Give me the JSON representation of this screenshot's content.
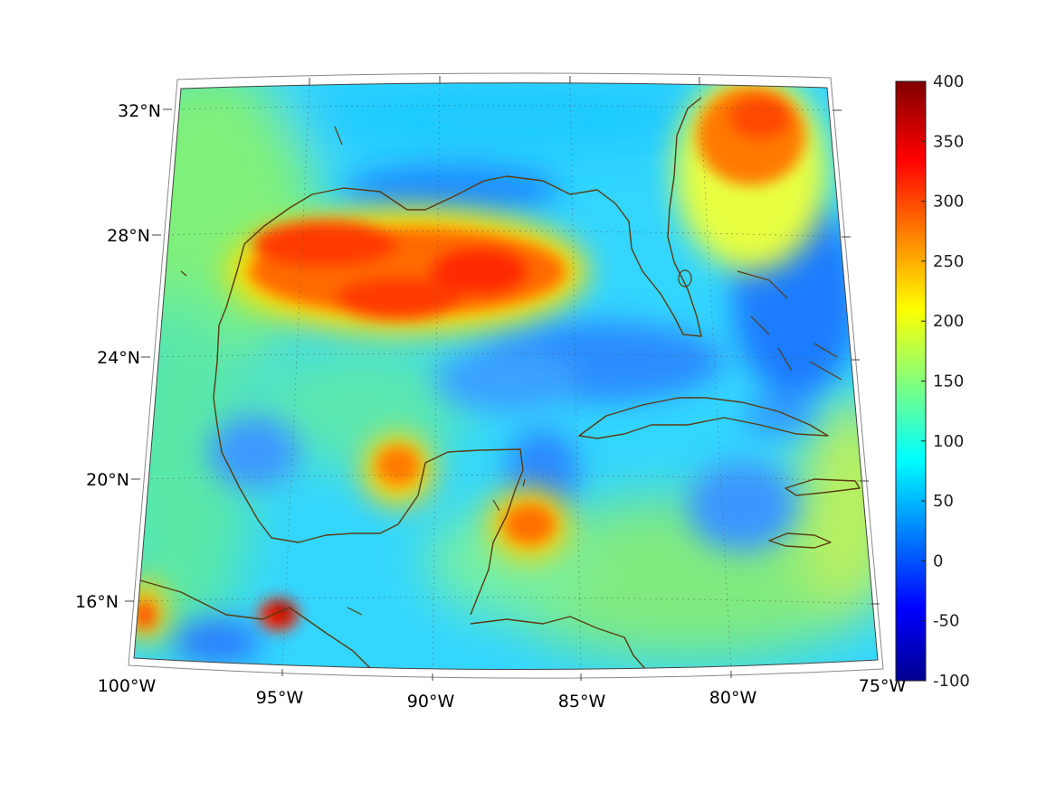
{
  "map": {
    "region": "Gulf of Mexico and Caribbean",
    "lon_range": [
      -100,
      -75
    ],
    "lat_range": [
      14,
      33
    ],
    "lat_ticks": [
      {
        "label": "32°N",
        "lat": 32
      },
      {
        "label": "28°N",
        "lat": 28
      },
      {
        "label": "24°N",
        "lat": 24
      },
      {
        "label": "20°N",
        "lat": 20
      },
      {
        "label": "16°N",
        "lat": 16
      }
    ],
    "lon_ticks": [
      {
        "label": "100°W",
        "lon": -100
      },
      {
        "label": "95°W",
        "lon": -95
      },
      {
        "label": "90°W",
        "lon": -90
      },
      {
        "label": "85°W",
        "lon": -85
      },
      {
        "label": "80°W",
        "lon": -80
      },
      {
        "label": "75°W",
        "lon": -75
      }
    ],
    "coastline_color": "#5a3b10",
    "colormap": "jet"
  },
  "colorbar": {
    "min": -100,
    "max": 400,
    "tick_labels": [
      "400",
      "350",
      "300",
      "250",
      "200",
      "150",
      "100",
      "50",
      "0",
      "-50",
      "-100"
    ]
  }
}
